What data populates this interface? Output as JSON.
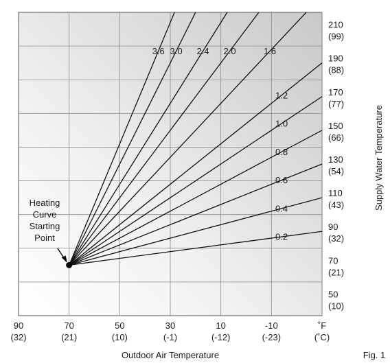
{
  "chart_data": {
    "type": "line",
    "x_axis": {
      "label": "Outdoor Air Temperature",
      "unit_label": "˚F",
      "unit_label_alt": "(˚C)",
      "direction": "decreasing",
      "range_f": [
        90,
        -30
      ],
      "ticks": [
        {
          "f": "90",
          "c": "(32)"
        },
        {
          "f": "70",
          "c": "(21)"
        },
        {
          "f": "50",
          "c": "(10)"
        },
        {
          "f": "30",
          "c": "(-1)"
        },
        {
          "f": "10",
          "c": "(-12)"
        },
        {
          "f": "-10",
          "c": "(-23)"
        }
      ]
    },
    "y_axis": {
      "label": "Supply Water Temperature",
      "range_f": [
        40,
        220
      ],
      "ticks": [
        {
          "f": "50",
          "c": "(10)"
        },
        {
          "f": "70",
          "c": "(21)"
        },
        {
          "f": "90",
          "c": "(32)"
        },
        {
          "f": "110",
          "c": "(43)"
        },
        {
          "f": "130",
          "c": "(54)"
        },
        {
          "f": "150",
          "c": "(66)"
        },
        {
          "f": "170",
          "c": "(77)"
        },
        {
          "f": "190",
          "c": "(88)"
        },
        {
          "f": "210",
          "c": "(99)"
        }
      ]
    },
    "grid": true,
    "starting_point": {
      "x_f": 70,
      "y_f": 70,
      "label_lines": [
        "Heating",
        "Curve",
        "Starting",
        "Point"
      ]
    },
    "series": [
      {
        "name": "0.2",
        "slope": 0.2
      },
      {
        "name": "0.4",
        "slope": 0.4
      },
      {
        "name": "0.6",
        "slope": 0.6
      },
      {
        "name": "0.8",
        "slope": 0.8
      },
      {
        "name": "1.0",
        "slope": 1.0
      },
      {
        "name": "1.2",
        "slope": 1.2
      },
      {
        "name": "1.6",
        "slope": 1.6
      },
      {
        "name": "2.0",
        "slope": 2.0
      },
      {
        "name": "2.4",
        "slope": 2.4
      },
      {
        "name": "3.0",
        "slope": 3.0
      },
      {
        "name": "3.6",
        "slope": 3.6
      }
    ]
  },
  "figure_label": "Fig. 1"
}
